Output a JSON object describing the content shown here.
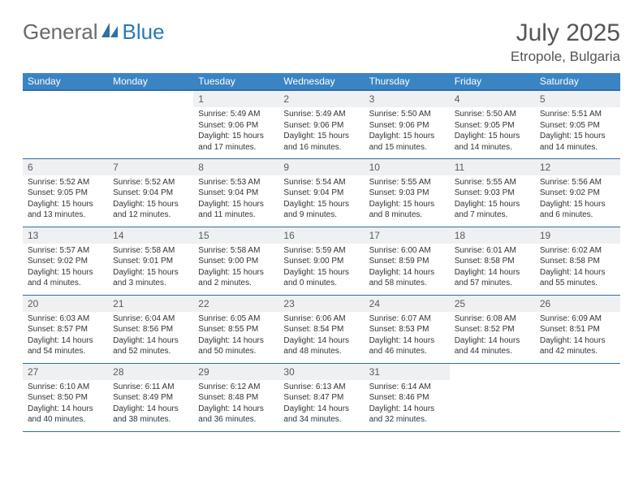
{
  "brand": {
    "word1": "General",
    "word2": "Blue"
  },
  "title": "July 2025",
  "location": "Etropole, Bulgaria",
  "colors": {
    "header_bg": "#3b84c4",
    "header_fg": "#ffffff",
    "rule": "#2f6fa8",
    "daynum_bg": "#eef0f2",
    "brand_gray": "#6a6a6a",
    "brand_blue": "#2779bd"
  },
  "weekdays": [
    "Sunday",
    "Monday",
    "Tuesday",
    "Wednesday",
    "Thursday",
    "Friday",
    "Saturday"
  ],
  "weeks": [
    [
      null,
      null,
      {
        "n": "1",
        "sr": "Sunrise: 5:49 AM",
        "ss": "Sunset: 9:06 PM",
        "dl": "Daylight: 15 hours and 17 minutes."
      },
      {
        "n": "2",
        "sr": "Sunrise: 5:49 AM",
        "ss": "Sunset: 9:06 PM",
        "dl": "Daylight: 15 hours and 16 minutes."
      },
      {
        "n": "3",
        "sr": "Sunrise: 5:50 AM",
        "ss": "Sunset: 9:06 PM",
        "dl": "Daylight: 15 hours and 15 minutes."
      },
      {
        "n": "4",
        "sr": "Sunrise: 5:50 AM",
        "ss": "Sunset: 9:05 PM",
        "dl": "Daylight: 15 hours and 14 minutes."
      },
      {
        "n": "5",
        "sr": "Sunrise: 5:51 AM",
        "ss": "Sunset: 9:05 PM",
        "dl": "Daylight: 15 hours and 14 minutes."
      }
    ],
    [
      {
        "n": "6",
        "sr": "Sunrise: 5:52 AM",
        "ss": "Sunset: 9:05 PM",
        "dl": "Daylight: 15 hours and 13 minutes."
      },
      {
        "n": "7",
        "sr": "Sunrise: 5:52 AM",
        "ss": "Sunset: 9:04 PM",
        "dl": "Daylight: 15 hours and 12 minutes."
      },
      {
        "n": "8",
        "sr": "Sunrise: 5:53 AM",
        "ss": "Sunset: 9:04 PM",
        "dl": "Daylight: 15 hours and 11 minutes."
      },
      {
        "n": "9",
        "sr": "Sunrise: 5:54 AM",
        "ss": "Sunset: 9:04 PM",
        "dl": "Daylight: 15 hours and 9 minutes."
      },
      {
        "n": "10",
        "sr": "Sunrise: 5:55 AM",
        "ss": "Sunset: 9:03 PM",
        "dl": "Daylight: 15 hours and 8 minutes."
      },
      {
        "n": "11",
        "sr": "Sunrise: 5:55 AM",
        "ss": "Sunset: 9:03 PM",
        "dl": "Daylight: 15 hours and 7 minutes."
      },
      {
        "n": "12",
        "sr": "Sunrise: 5:56 AM",
        "ss": "Sunset: 9:02 PM",
        "dl": "Daylight: 15 hours and 6 minutes."
      }
    ],
    [
      {
        "n": "13",
        "sr": "Sunrise: 5:57 AM",
        "ss": "Sunset: 9:02 PM",
        "dl": "Daylight: 15 hours and 4 minutes."
      },
      {
        "n": "14",
        "sr": "Sunrise: 5:58 AM",
        "ss": "Sunset: 9:01 PM",
        "dl": "Daylight: 15 hours and 3 minutes."
      },
      {
        "n": "15",
        "sr": "Sunrise: 5:58 AM",
        "ss": "Sunset: 9:00 PM",
        "dl": "Daylight: 15 hours and 2 minutes."
      },
      {
        "n": "16",
        "sr": "Sunrise: 5:59 AM",
        "ss": "Sunset: 9:00 PM",
        "dl": "Daylight: 15 hours and 0 minutes."
      },
      {
        "n": "17",
        "sr": "Sunrise: 6:00 AM",
        "ss": "Sunset: 8:59 PM",
        "dl": "Daylight: 14 hours and 58 minutes."
      },
      {
        "n": "18",
        "sr": "Sunrise: 6:01 AM",
        "ss": "Sunset: 8:58 PM",
        "dl": "Daylight: 14 hours and 57 minutes."
      },
      {
        "n": "19",
        "sr": "Sunrise: 6:02 AM",
        "ss": "Sunset: 8:58 PM",
        "dl": "Daylight: 14 hours and 55 minutes."
      }
    ],
    [
      {
        "n": "20",
        "sr": "Sunrise: 6:03 AM",
        "ss": "Sunset: 8:57 PM",
        "dl": "Daylight: 14 hours and 54 minutes."
      },
      {
        "n": "21",
        "sr": "Sunrise: 6:04 AM",
        "ss": "Sunset: 8:56 PM",
        "dl": "Daylight: 14 hours and 52 minutes."
      },
      {
        "n": "22",
        "sr": "Sunrise: 6:05 AM",
        "ss": "Sunset: 8:55 PM",
        "dl": "Daylight: 14 hours and 50 minutes."
      },
      {
        "n": "23",
        "sr": "Sunrise: 6:06 AM",
        "ss": "Sunset: 8:54 PM",
        "dl": "Daylight: 14 hours and 48 minutes."
      },
      {
        "n": "24",
        "sr": "Sunrise: 6:07 AM",
        "ss": "Sunset: 8:53 PM",
        "dl": "Daylight: 14 hours and 46 minutes."
      },
      {
        "n": "25",
        "sr": "Sunrise: 6:08 AM",
        "ss": "Sunset: 8:52 PM",
        "dl": "Daylight: 14 hours and 44 minutes."
      },
      {
        "n": "26",
        "sr": "Sunrise: 6:09 AM",
        "ss": "Sunset: 8:51 PM",
        "dl": "Daylight: 14 hours and 42 minutes."
      }
    ],
    [
      {
        "n": "27",
        "sr": "Sunrise: 6:10 AM",
        "ss": "Sunset: 8:50 PM",
        "dl": "Daylight: 14 hours and 40 minutes."
      },
      {
        "n": "28",
        "sr": "Sunrise: 6:11 AM",
        "ss": "Sunset: 8:49 PM",
        "dl": "Daylight: 14 hours and 38 minutes."
      },
      {
        "n": "29",
        "sr": "Sunrise: 6:12 AM",
        "ss": "Sunset: 8:48 PM",
        "dl": "Daylight: 14 hours and 36 minutes."
      },
      {
        "n": "30",
        "sr": "Sunrise: 6:13 AM",
        "ss": "Sunset: 8:47 PM",
        "dl": "Daylight: 14 hours and 34 minutes."
      },
      {
        "n": "31",
        "sr": "Sunrise: 6:14 AM",
        "ss": "Sunset: 8:46 PM",
        "dl": "Daylight: 14 hours and 32 minutes."
      },
      null,
      null
    ]
  ]
}
